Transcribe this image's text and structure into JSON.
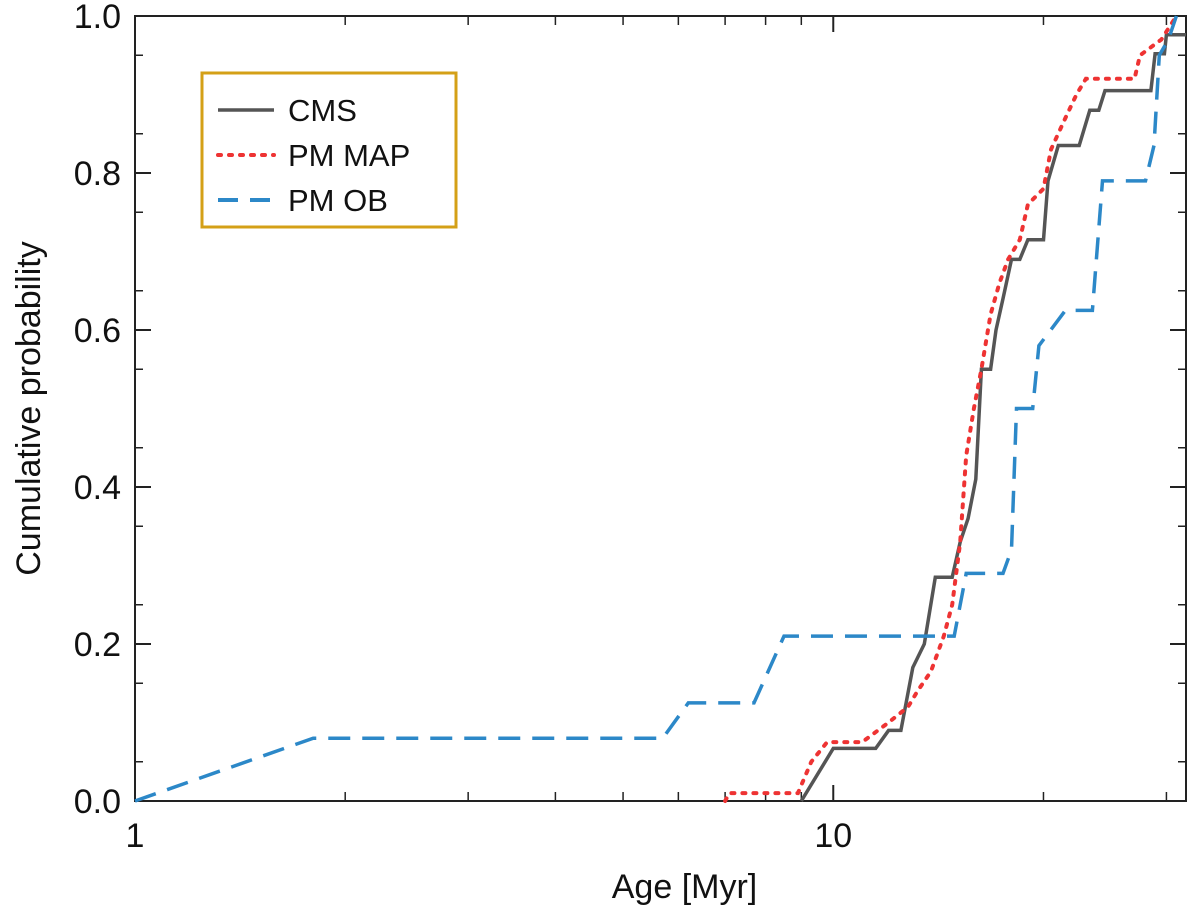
{
  "chart_data": {
    "type": "line",
    "title": "",
    "xlabel": "Age [Myr]",
    "ylabel": "Cumulative probability",
    "xscale": "log",
    "xlim": [
      1,
      32
    ],
    "ylim": [
      0,
      1.0
    ],
    "x_ticks": [
      1,
      10
    ],
    "x_tick_labels": [
      "1",
      "10"
    ],
    "y_ticks": [
      0.0,
      0.2,
      0.4,
      0.6,
      0.8,
      1.0
    ],
    "y_tick_labels": [
      "0.0",
      "0.2",
      "0.4",
      "0.6",
      "0.8",
      "1.0"
    ],
    "legend_position": "top-left",
    "series": [
      {
        "name": "CMS",
        "color": "#555555",
        "style": "solid",
        "points": [
          [
            9.0,
            0.0
          ],
          [
            10.0,
            0.067
          ],
          [
            11.5,
            0.067
          ],
          [
            12.0,
            0.09
          ],
          [
            12.5,
            0.09
          ],
          [
            13.0,
            0.17
          ],
          [
            13.5,
            0.2
          ],
          [
            14.0,
            0.285
          ],
          [
            14.8,
            0.285
          ],
          [
            15.2,
            0.33
          ],
          [
            15.6,
            0.36
          ],
          [
            16.0,
            0.41
          ],
          [
            16.3,
            0.55
          ],
          [
            16.8,
            0.55
          ],
          [
            17.1,
            0.6
          ],
          [
            17.5,
            0.64
          ],
          [
            18.0,
            0.69
          ],
          [
            18.5,
            0.69
          ],
          [
            19.0,
            0.715
          ],
          [
            20.0,
            0.715
          ],
          [
            20.3,
            0.79
          ],
          [
            21.0,
            0.835
          ],
          [
            22.5,
            0.835
          ],
          [
            23.3,
            0.88
          ],
          [
            24.0,
            0.88
          ],
          [
            24.5,
            0.905
          ],
          [
            28.5,
            0.905
          ],
          [
            28.9,
            0.952
          ],
          [
            29.8,
            0.952
          ],
          [
            30.0,
            0.976
          ],
          [
            32.0,
            0.976
          ]
        ]
      },
      {
        "name": "PM MAP",
        "color": "#ee3333",
        "style": "dotted",
        "points": [
          [
            7.0,
            0.0
          ],
          [
            7.1,
            0.01
          ],
          [
            8.9,
            0.01
          ],
          [
            9.3,
            0.05
          ],
          [
            9.8,
            0.075
          ],
          [
            11.0,
            0.075
          ],
          [
            12.0,
            0.1
          ],
          [
            12.8,
            0.12
          ],
          [
            13.2,
            0.14
          ],
          [
            13.8,
            0.165
          ],
          [
            14.4,
            0.21
          ],
          [
            14.8,
            0.25
          ],
          [
            15.2,
            0.33
          ],
          [
            15.5,
            0.44
          ],
          [
            15.9,
            0.5
          ],
          [
            16.3,
            0.55
          ],
          [
            16.8,
            0.62
          ],
          [
            17.3,
            0.66
          ],
          [
            17.8,
            0.69
          ],
          [
            18.5,
            0.715
          ],
          [
            19.0,
            0.76
          ],
          [
            20.0,
            0.78
          ],
          [
            20.5,
            0.83
          ],
          [
            21.5,
            0.87
          ],
          [
            22.3,
            0.9
          ],
          [
            23.0,
            0.92
          ],
          [
            27.0,
            0.92
          ],
          [
            27.5,
            0.95
          ],
          [
            29.5,
            0.97
          ],
          [
            31.0,
            1.0
          ]
        ]
      },
      {
        "name": "PM OB",
        "color": "#2c88c8",
        "style": "dashed",
        "points": [
          [
            1.0,
            0.0
          ],
          [
            1.8,
            0.08
          ],
          [
            5.7,
            0.08
          ],
          [
            6.2,
            0.125
          ],
          [
            7.7,
            0.125
          ],
          [
            8.5,
            0.21
          ],
          [
            14.9,
            0.21
          ],
          [
            15.5,
            0.29
          ],
          [
            17.5,
            0.29
          ],
          [
            18.0,
            0.32
          ],
          [
            18.3,
            0.5
          ],
          [
            19.3,
            0.5
          ],
          [
            19.7,
            0.58
          ],
          [
            21.5,
            0.625
          ],
          [
            23.5,
            0.625
          ],
          [
            24.3,
            0.79
          ],
          [
            28.0,
            0.79
          ],
          [
            28.8,
            0.835
          ],
          [
            29.3,
            0.95
          ],
          [
            30.2,
            0.97
          ],
          [
            31.0,
            1.0
          ]
        ]
      }
    ]
  },
  "legend": {
    "items": [
      {
        "label": "CMS"
      },
      {
        "label": "PM MAP"
      },
      {
        "label": "PM OB"
      }
    ],
    "border_color": "#d4a017"
  },
  "colors": {
    "axis": "#222222",
    "background": "#ffffff"
  }
}
